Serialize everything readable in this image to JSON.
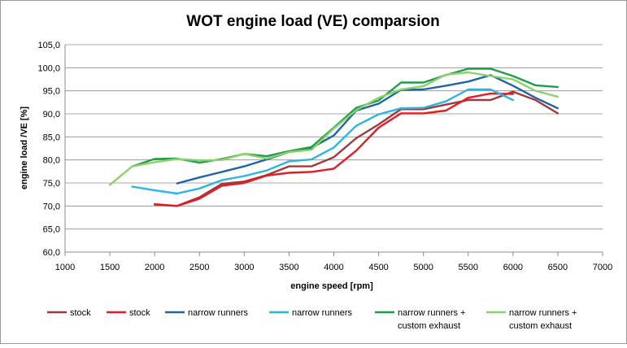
{
  "chart_data": {
    "type": "line",
    "title": "WOT engine load (VE) comparsion",
    "xlabel": "engine speed [rpm]",
    "ylabel": "engine load /VE [%]",
    "xlim": [
      1000,
      7000
    ],
    "ylim": [
      60,
      105
    ],
    "xticks": [
      1000,
      1500,
      2000,
      2500,
      3000,
      3500,
      4000,
      4500,
      5000,
      5500,
      6000,
      6500,
      7000
    ],
    "yticks": [
      60,
      65,
      70,
      75,
      80,
      85,
      90,
      95,
      100,
      105
    ],
    "xtick_labels": [
      "1000",
      "1500",
      "2000",
      "2500",
      "3000",
      "3500",
      "4000",
      "4500",
      "5000",
      "5500",
      "6000",
      "6500",
      "7000"
    ],
    "ytick_labels": [
      "60,0",
      "65,0",
      "70,0",
      "75,0",
      "80,0",
      "85,0",
      "90,0",
      "95,0",
      "100,0",
      "105,0"
    ],
    "grid": "horizontal",
    "legend_position": "bottom",
    "series": [
      {
        "name": "stock",
        "color": "#A0393B",
        "x": [
          2000,
          2250,
          2500,
          2750,
          3000,
          3250,
          3500,
          3750,
          4000,
          4250,
          4500,
          4750,
          5000,
          5250,
          5500,
          5750,
          6000,
          6250,
          6500
        ],
        "values": [
          70.3,
          70.0,
          71.9,
          74.8,
          75.3,
          76.7,
          78.6,
          78.6,
          80.6,
          84.7,
          87.7,
          91.0,
          91.0,
          92.0,
          93.0,
          93.0,
          94.8,
          93.0,
          90.1
        ]
      },
      {
        "name": "stock",
        "color": "#E31B23",
        "x": [
          2000,
          2250,
          2500,
          2750,
          3000,
          3250,
          3500,
          3750,
          4000,
          4250,
          4500,
          4750,
          5000,
          5250,
          5500,
          5750,
          6000
        ],
        "values": [
          70.4,
          70.0,
          71.6,
          74.4,
          75.0,
          76.6,
          77.2,
          77.4,
          78.1,
          82.0,
          87.0,
          90.1,
          90.1,
          90.7,
          93.5,
          94.4,
          94.3
        ]
      },
      {
        "name": "narrow runners",
        "color": "#1F64A8",
        "x": [
          2250,
          2500,
          2750,
          3000,
          3250,
          3500,
          3750,
          4000,
          4250,
          4500,
          4750,
          5000,
          5250,
          5500,
          5750,
          6000,
          6250,
          6500
        ],
        "values": [
          74.9,
          76.2,
          77.4,
          78.6,
          80.1,
          81.7,
          82.6,
          85.3,
          90.7,
          92.2,
          95.2,
          95.3,
          96.1,
          97.0,
          98.4,
          96.1,
          93.5,
          91.2
        ]
      },
      {
        "name": "narrow runners",
        "color": "#2BB5E4",
        "x": [
          1750,
          2000,
          2250,
          2500,
          2750,
          3000,
          3250,
          3500,
          3750,
          4000,
          4250,
          4500,
          4750,
          5000,
          5250,
          5500,
          5750,
          6000
        ],
        "values": [
          74.2,
          73.4,
          72.7,
          73.8,
          75.6,
          76.5,
          77.7,
          79.7,
          80.1,
          82.7,
          87.4,
          89.9,
          91.2,
          91.3,
          92.7,
          95.3,
          95.3,
          93.0
        ]
      },
      {
        "name": "narrow runners + custom exhaust",
        "color": "#1E9E4C",
        "x": [
          1750,
          2000,
          2250,
          2500,
          2750,
          3000,
          3250,
          3500,
          3750,
          4000,
          4250,
          4500,
          4750,
          5000,
          5250,
          5500,
          5750,
          6000,
          6250,
          6500
        ],
        "values": [
          78.6,
          80.2,
          80.3,
          79.4,
          80.2,
          81.3,
          80.8,
          81.9,
          82.8,
          87.0,
          91.3,
          92.9,
          96.8,
          96.8,
          98.4,
          99.8,
          99.8,
          98.2,
          96.2,
          95.8
        ]
      },
      {
        "name": "narrow runners + custom exhaust",
        "color": "#8CD16A",
        "x": [
          1500,
          1750,
          2000,
          2250,
          2500,
          2750,
          3000,
          3250,
          3500,
          3750,
          4000,
          4250,
          4500,
          4750,
          5000,
          5250,
          5500,
          5750,
          6000,
          6250,
          6500
        ],
        "values": [
          74.6,
          78.6,
          79.5,
          80.2,
          79.9,
          80.0,
          81.3,
          80.3,
          81.7,
          82.2,
          86.8,
          90.8,
          93.5,
          95.3,
          96.0,
          98.5,
          99.0,
          98.2,
          97.5,
          95.0,
          93.7
        ]
      }
    ]
  },
  "legend_entries": [
    {
      "line1": "stock",
      "line2": "",
      "color": "#A0393B"
    },
    {
      "line1": "stock",
      "line2": "",
      "color": "#E31B23"
    },
    {
      "line1": "narrow runners",
      "line2": "",
      "color": "#1F64A8"
    },
    {
      "line1": "narrow runners",
      "line2": "",
      "color": "#2BB5E4"
    },
    {
      "line1": "narrow runners +",
      "line2": "custom exhaust",
      "color": "#1E9E4C"
    },
    {
      "line1": "narrow runners +",
      "line2": "custom exhaust",
      "color": "#8CD16A"
    }
  ]
}
